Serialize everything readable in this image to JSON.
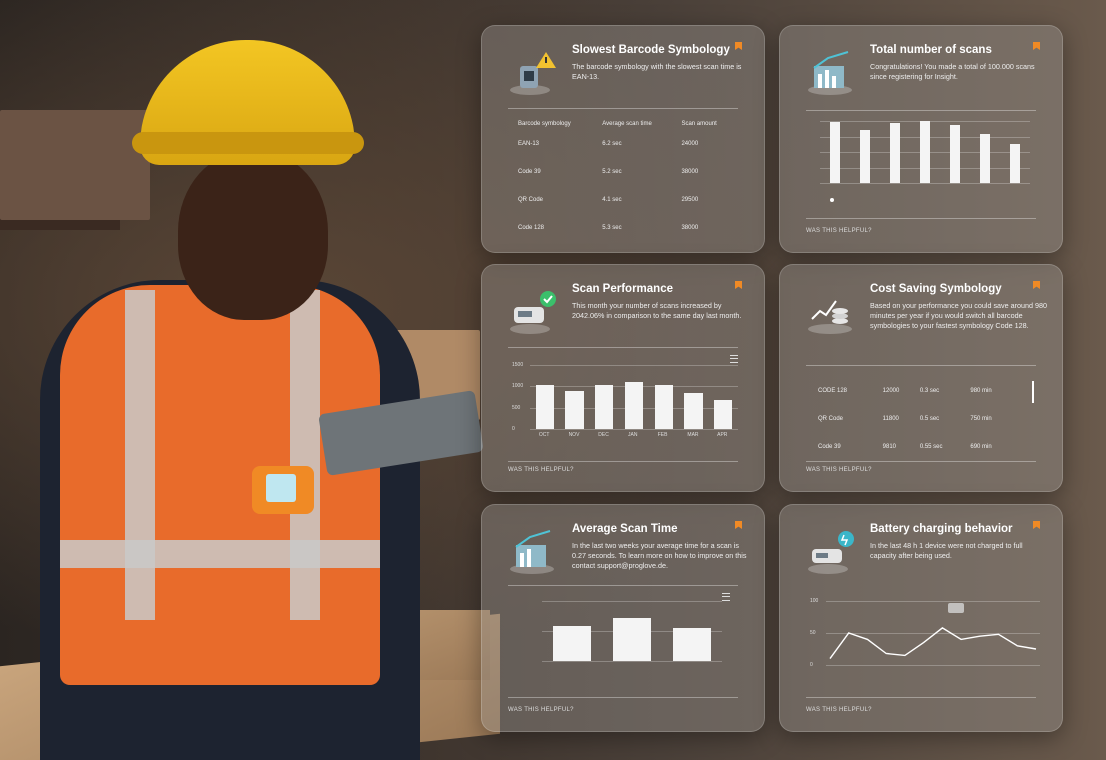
{
  "cards": {
    "slowest": {
      "title": "Slowest Barcode Symbology",
      "desc": "The barcode symbology with the slowest scan time is EAN-13.",
      "headers": [
        "Barcode symbology",
        "Average scan time",
        "Scan amount"
      ],
      "rows": [
        [
          "EAN-13",
          "6.2 sec",
          "24000"
        ],
        [
          "Code 39",
          "5.2 sec",
          "38000"
        ],
        [
          "QR Code",
          "4.1 sec",
          "29500"
        ],
        [
          "Code 128",
          "5.3 sec",
          "38000"
        ]
      ]
    },
    "total": {
      "title": "Total number of scans",
      "desc": "Congratulations! You made a total of 100.000 scans since registering for Insight.",
      "helpful": "WAS THIS HELPFUL?"
    },
    "performance": {
      "title": "Scan Performance",
      "desc": "This month your number of scans increased by 2042.06% in comparison to the same day last month.",
      "helpful": "WAS THIS HELPFUL?"
    },
    "cost": {
      "title": "Cost Saving Symbology",
      "desc": "Based on your performance you could save around 980 minutes per year if you would switch all barcode symbologies to your fastest symbology Code 128.",
      "rows": [
        [
          "CODE 128",
          "12000",
          "0.3 sec",
          "980 min"
        ],
        [
          "QR Code",
          "11800",
          "0.5 sec",
          "750 min"
        ],
        [
          "Code 39",
          "9810",
          "0.55 sec",
          "690 min"
        ]
      ],
      "helpful": "WAS THIS HELPFUL?"
    },
    "average": {
      "title": "Average Scan Time",
      "desc": "In the last two weeks your average time for a scan is 0.27 seconds. To learn more on how to improve on this contact support@proglove.de.",
      "helpful": "WAS THIS HELPFUL?"
    },
    "battery": {
      "title": "Battery charging behavior",
      "desc": "In the last 48 h 1 device were not charged to full capacity after being used.",
      "helpful": "WAS THIS HELPFUL?"
    }
  },
  "chart_data": [
    {
      "type": "bar",
      "categories": [
        "",
        "",
        "",
        "",
        "",
        "",
        ""
      ],
      "values": [
        98,
        86,
        96,
        100,
        93,
        79,
        63
      ],
      "ylim": [
        0,
        100
      ]
    },
    {
      "type": "bar",
      "categories": [
        "OCT",
        "NOV",
        "DEC",
        "JAN",
        "FEB",
        "MAR",
        "APR"
      ],
      "values": [
        1040,
        880,
        1030,
        1110,
        1040,
        850,
        670
      ],
      "yticks": [
        "1500",
        "1000",
        "500",
        "0"
      ],
      "ylim": [
        0,
        1500
      ]
    },
    {
      "type": "bar",
      "categories": [
        "",
        "",
        ""
      ],
      "values": [
        0.58,
        0.72,
        0.55
      ],
      "ylim": [
        0,
        1
      ]
    },
    {
      "type": "line",
      "x": [
        0,
        1,
        2,
        3,
        4,
        5,
        6,
        7,
        8,
        9,
        10,
        11
      ],
      "values": [
        10,
        50,
        40,
        18,
        15,
        35,
        58,
        40,
        45,
        48,
        30,
        25
      ],
      "yticks": [
        "100",
        "50",
        "0"
      ],
      "ylim": [
        0,
        100
      ]
    }
  ]
}
